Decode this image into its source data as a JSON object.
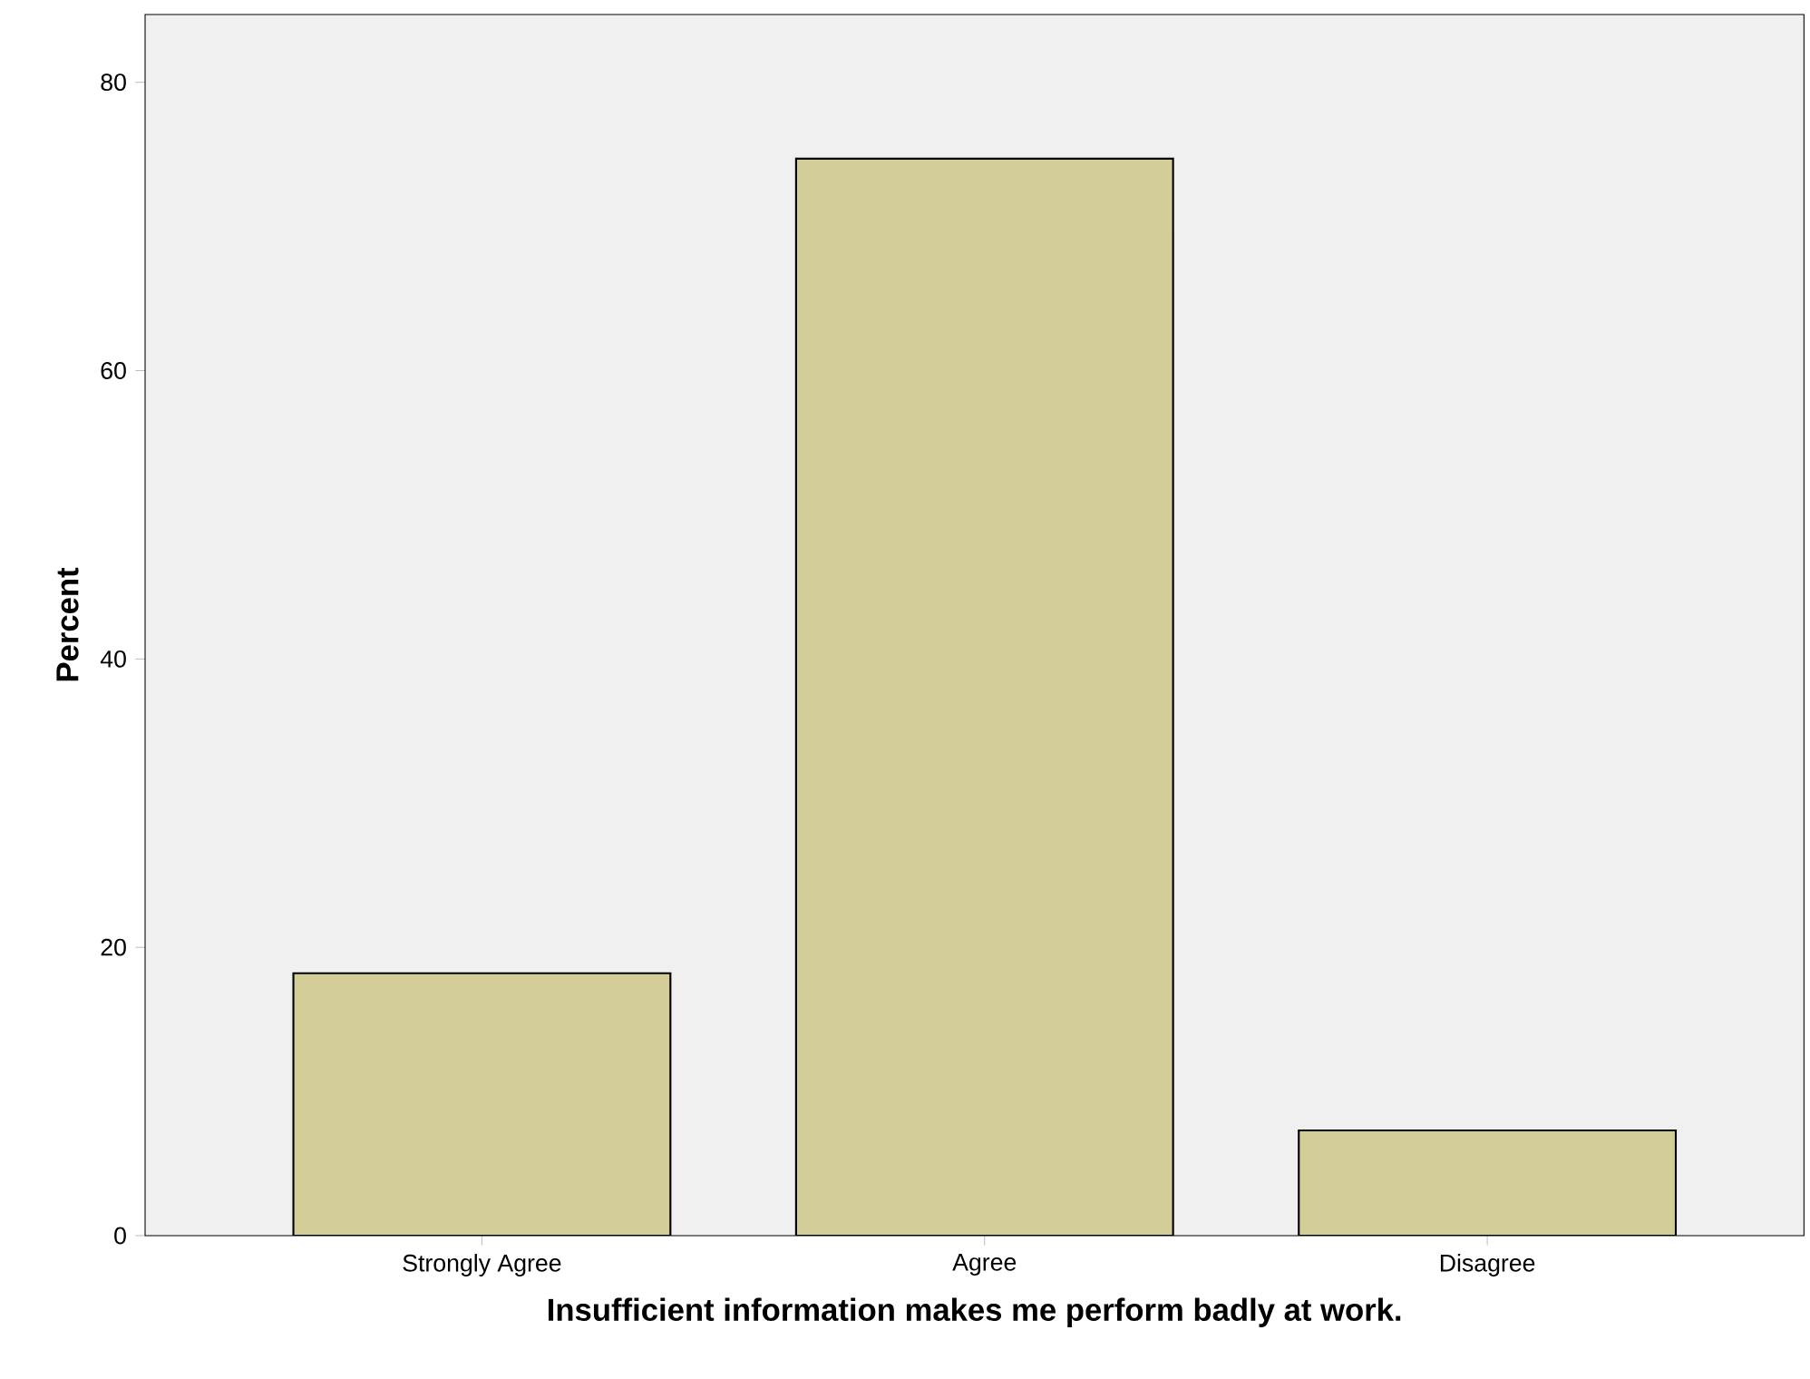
{
  "chart_data": {
    "type": "bar",
    "xlabel": "Insufficient information makes me perform badly at work.",
    "ylabel": "Percent",
    "categories": [
      "Strongly Agree",
      "Agree",
      "Disagree"
    ],
    "values": [
      18.2,
      74.7,
      7.3
    ],
    "color": "#d3ce97",
    "ylim": [
      0,
      84.7
    ],
    "yticks": [
      0,
      20,
      40,
      60,
      80
    ],
    "grid": false
  }
}
